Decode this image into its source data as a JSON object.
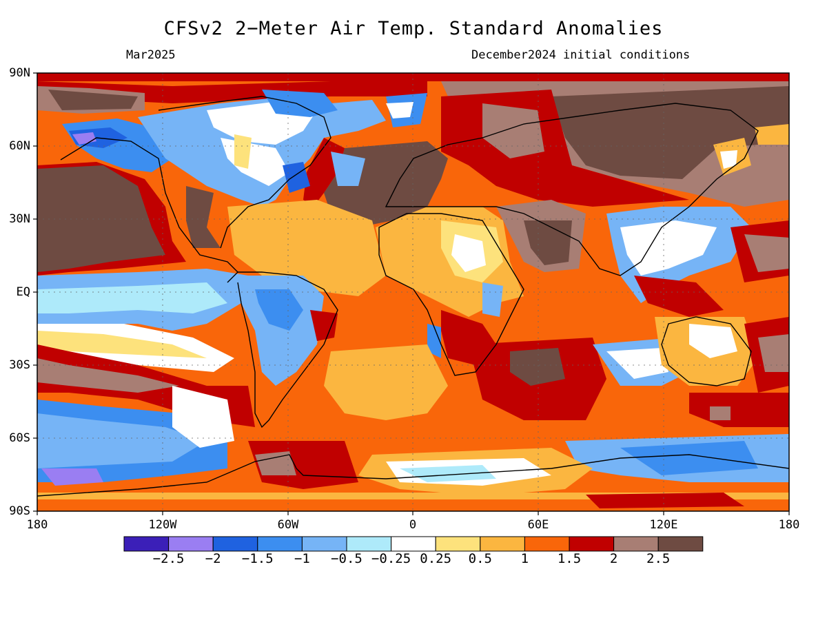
{
  "title": "CFSv2 2−Meter Air Temp. Standard Anomalies",
  "subtitle_left": "Mar2025",
  "subtitle_right": "December2024 initial conditions",
  "lat_labels": [
    "90N",
    "60N",
    "30N",
    "EQ",
    "30S",
    "60S",
    "90S"
  ],
  "lon_labels": [
    "180",
    "120W",
    "60W",
    "0",
    "60E",
    "120E",
    "180"
  ],
  "colorbar": {
    "colors": [
      "#3b1fb8",
      "#9a7ef2",
      "#1f62e0",
      "#3c8ef0",
      "#76b4f6",
      "#aeeafa",
      "#ffffff",
      "#fde27c",
      "#fbb640",
      "#f9660a",
      "#c00000",
      "#a87e74",
      "#6e4b42"
    ],
    "labels": [
      "−2.5",
      "−2",
      "−1.5",
      "−1",
      "−0.5",
      "−0.25",
      "0.25",
      "0.5",
      "1",
      "1.5",
      "2",
      "2.5"
    ]
  },
  "colors": {
    "very_warm": "#6e4b42",
    "warm_brown": "#a87e74",
    "dark_red": "#c00000",
    "orange": "#f9660a",
    "light_orange": "#fbb640",
    "yellow": "#fde27c",
    "neutral": "#ffffff",
    "pale_blue": "#aeeafa",
    "light_blue": "#76b4f6",
    "blue": "#3c8ef0",
    "dark_blue": "#1f62e0",
    "purple": "#9a7ef2"
  }
}
